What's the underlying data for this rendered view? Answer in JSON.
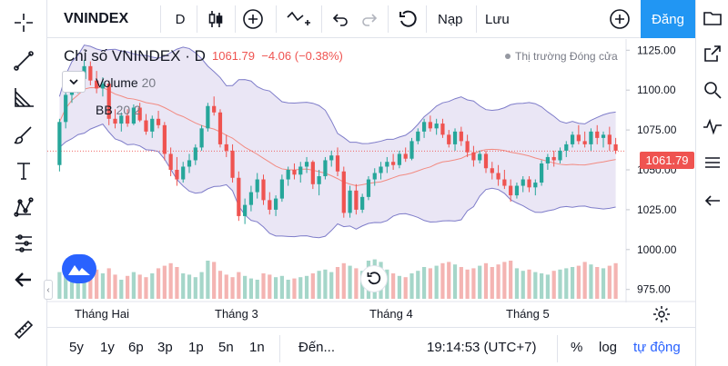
{
  "symbol": "VNINDEX",
  "interval": "D",
  "toolbar": {
    "undo_label": "Nạp",
    "save_label": "Lưu",
    "publish_label": "Đăng"
  },
  "legend": {
    "title": "Chỉ số VNINDEX · D",
    "last": "1061.79",
    "change": "−4.06 (−0.38%)",
    "market_status": "Thị trường Đóng cửa",
    "volume_name": "Volume",
    "volume_param": "20",
    "bb_name": "BB",
    "bb_params": "20 2"
  },
  "price_label": "1061.79",
  "time_labels": [
    "Tháng Hai",
    "Tháng 3",
    "Tháng 4",
    "Tháng 5"
  ],
  "price_ticks": [
    "1125.00",
    "1100.00",
    "1075.00",
    "1050.00",
    "1025.00",
    "1000.00",
    "975.00"
  ],
  "ranges": [
    "5y",
    "1y",
    "6p",
    "3p",
    "1p",
    "5n",
    "1n"
  ],
  "goto_label": "Đến...",
  "clock": "19:14:53 (UTC+7)",
  "scale_percent": "%",
  "scale_log": "log",
  "scale_auto": "tự động",
  "colors": {
    "up": "#26a69a",
    "down": "#ef5350",
    "accent": "#2962ff",
    "publish": "#2196f3",
    "bb_fill": "#d1c4e9"
  },
  "chart_data": {
    "type": "candlestick",
    "y_range": [
      968,
      1132
    ],
    "last_price": 1061.79,
    "candles_ohlc": [
      [
        1053,
        1082,
        1049,
        1080
      ],
      [
        1080,
        1100,
        1076,
        1097
      ],
      [
        1097,
        1110,
        1092,
        1104
      ],
      [
        1104,
        1109,
        1098,
        1107
      ],
      [
        1107,
        1119,
        1104,
        1115
      ],
      [
        1115,
        1118,
        1103,
        1106
      ],
      [
        1106,
        1112,
        1098,
        1101
      ],
      [
        1101,
        1108,
        1096,
        1104
      ],
      [
        1104,
        1106,
        1078,
        1082
      ],
      [
        1082,
        1088,
        1076,
        1079
      ],
      [
        1079,
        1086,
        1074,
        1084
      ],
      [
        1084,
        1088,
        1077,
        1079
      ],
      [
        1079,
        1091,
        1078,
        1089
      ],
      [
        1089,
        1092,
        1080,
        1081
      ],
      [
        1081,
        1085,
        1072,
        1074
      ],
      [
        1074,
        1084,
        1070,
        1082
      ],
      [
        1082,
        1087,
        1076,
        1078
      ],
      [
        1078,
        1080,
        1056,
        1060
      ],
      [
        1060,
        1064,
        1046,
        1050
      ],
      [
        1050,
        1058,
        1040,
        1044
      ],
      [
        1044,
        1055,
        1042,
        1052
      ],
      [
        1052,
        1060,
        1048,
        1056
      ],
      [
        1056,
        1066,
        1053,
        1064
      ],
      [
        1064,
        1078,
        1062,
        1076
      ],
      [
        1076,
        1092,
        1074,
        1090
      ],
      [
        1090,
        1096,
        1084,
        1086
      ],
      [
        1086,
        1088,
        1064,
        1066
      ],
      [
        1066,
        1072,
        1058,
        1062
      ],
      [
        1062,
        1066,
        1042,
        1045
      ],
      [
        1045,
        1049,
        1018,
        1021
      ],
      [
        1021,
        1032,
        1016,
        1028
      ],
      [
        1028,
        1040,
        1024,
        1036
      ],
      [
        1036,
        1048,
        1032,
        1044
      ],
      [
        1044,
        1047,
        1028,
        1031
      ],
      [
        1031,
        1036,
        1022,
        1025
      ],
      [
        1025,
        1034,
        1021,
        1032
      ],
      [
        1032,
        1047,
        1030,
        1044
      ],
      [
        1044,
        1052,
        1040,
        1050
      ],
      [
        1050,
        1054,
        1044,
        1047
      ],
      [
        1047,
        1055,
        1042,
        1052
      ],
      [
        1052,
        1058,
        1048,
        1055
      ],
      [
        1055,
        1056,
        1038,
        1041
      ],
      [
        1041,
        1050,
        1034,
        1046
      ],
      [
        1046,
        1058,
        1044,
        1056
      ],
      [
        1056,
        1062,
        1052,
        1059
      ],
      [
        1059,
        1064,
        1046,
        1049
      ],
      [
        1049,
        1052,
        1020,
        1023
      ],
      [
        1023,
        1040,
        1020,
        1037
      ],
      [
        1037,
        1041,
        1022,
        1025
      ],
      [
        1025,
        1035,
        1023,
        1033
      ],
      [
        1033,
        1046,
        1031,
        1044
      ],
      [
        1044,
        1051,
        1040,
        1048
      ],
      [
        1048,
        1055,
        1044,
        1052
      ],
      [
        1052,
        1058,
        1048,
        1055
      ],
      [
        1055,
        1060,
        1050,
        1053
      ],
      [
        1053,
        1062,
        1051,
        1060
      ],
      [
        1060,
        1064,
        1055,
        1057
      ],
      [
        1057,
        1070,
        1056,
        1068
      ],
      [
        1068,
        1076,
        1066,
        1074
      ],
      [
        1074,
        1082,
        1070,
        1080
      ],
      [
        1080,
        1084,
        1074,
        1076
      ],
      [
        1076,
        1082,
        1072,
        1079
      ],
      [
        1079,
        1082,
        1070,
        1072
      ],
      [
        1072,
        1075,
        1064,
        1066
      ],
      [
        1066,
        1076,
        1062,
        1074
      ],
      [
        1074,
        1077,
        1065,
        1068
      ],
      [
        1068,
        1072,
        1058,
        1061
      ],
      [
        1061,
        1065,
        1052,
        1056
      ],
      [
        1056,
        1062,
        1054,
        1060
      ],
      [
        1060,
        1062,
        1048,
        1051
      ],
      [
        1051,
        1055,
        1044,
        1048
      ],
      [
        1048,
        1053,
        1040,
        1044
      ],
      [
        1044,
        1050,
        1038,
        1040
      ],
      [
        1040,
        1044,
        1030,
        1034
      ],
      [
        1034,
        1042,
        1032,
        1040
      ],
      [
        1040,
        1046,
        1036,
        1044
      ],
      [
        1044,
        1046,
        1036,
        1039
      ],
      [
        1039,
        1044,
        1034,
        1042
      ],
      [
        1042,
        1056,
        1040,
        1054
      ],
      [
        1054,
        1060,
        1050,
        1058
      ],
      [
        1058,
        1062,
        1052,
        1056
      ],
      [
        1056,
        1064,
        1054,
        1062
      ],
      [
        1062,
        1068,
        1058,
        1066
      ],
      [
        1066,
        1074,
        1064,
        1072
      ],
      [
        1072,
        1078,
        1066,
        1068
      ],
      [
        1068,
        1074,
        1064,
        1066
      ],
      [
        1066,
        1076,
        1062,
        1074
      ],
      [
        1074,
        1078,
        1066,
        1070
      ],
      [
        1070,
        1074,
        1064,
        1072
      ],
      [
        1072,
        1077,
        1062,
        1066
      ],
      [
        1066,
        1070,
        1060,
        1062
      ]
    ],
    "volume_scale_max": 100,
    "volume": [
      42,
      36,
      58,
      60,
      52,
      44,
      46,
      40,
      48,
      38,
      30,
      36,
      42,
      38,
      34,
      40,
      48,
      52,
      56,
      50,
      40,
      38,
      34,
      42,
      60,
      58,
      44,
      38,
      34,
      42,
      36,
      32,
      30,
      40,
      38,
      34,
      36,
      30,
      32,
      34,
      36,
      40,
      44,
      46,
      42,
      50,
      56,
      52,
      48,
      44,
      60,
      62,
      58,
      46,
      40,
      36,
      34,
      40,
      44,
      50,
      48,
      52,
      56,
      58,
      54,
      50,
      46,
      48,
      52,
      56,
      50,
      54,
      58,
      60,
      48,
      44,
      46,
      42,
      40,
      38,
      44,
      46,
      48,
      50,
      52,
      58,
      54,
      50,
      48,
      52,
      56
    ]
  }
}
